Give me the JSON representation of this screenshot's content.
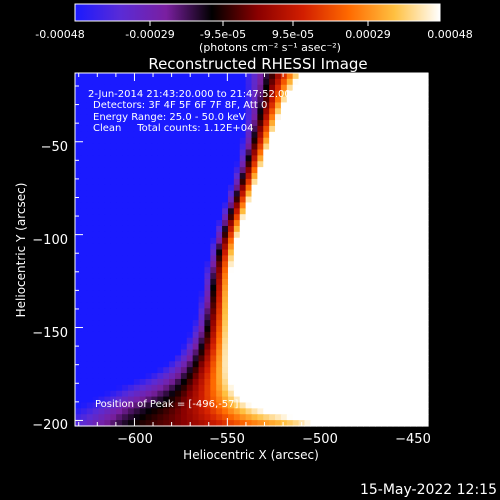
{
  "colorbar": {
    "tick_labels": [
      "-0.00048",
      "-0.00029",
      "-9.5e-05",
      "9.5e-05",
      "0.00029",
      "0.00048"
    ],
    "min": -0.00048,
    "max": 0.00048,
    "colors": [
      "#1a1aff",
      "#5a2bd6",
      "#7a1fa0",
      "#000000",
      "#8a0000",
      "#d21e00",
      "#ff6a00",
      "#ffc040",
      "#ffffff"
    ]
  },
  "chart_data": {
    "type": "heatmap",
    "title": "Reconstructed RHESSI Image",
    "xlabel": "Heliocentric X (arcsec)",
    "ylabel": "Heliocentric Y (arcsec)",
    "units": "(photons cm⁻² s⁻¹ asec⁻²)",
    "xlim": [
      -632,
      -442
    ],
    "ylim": [
      -203,
      -13
    ],
    "x_ticks": [
      -600,
      -550,
      -500,
      -450
    ],
    "y_ticks": [
      -50,
      -100,
      -150,
      -200
    ],
    "x_tick_labels": [
      "−600",
      "−550",
      "−500",
      "−450"
    ],
    "y_tick_labels": [
      "−50",
      "−100",
      "−150",
      "−200"
    ],
    "peak": [
      -496,
      -57
    ],
    "info_lines": [
      "2-Jun-2014 21:43:20.000 to 21:47:52.000",
      "Detectors: 3F 4F 5F 6F 7F 8F, Att 0",
      "Energy Range: 25.0 - 50.0 keV",
      "Clean     Total counts: 1.12E+04"
    ],
    "peak_label": "Position of Peak = [-496,-57]"
  },
  "footer": {
    "timestamp": "15-May-2022 12:15"
  }
}
